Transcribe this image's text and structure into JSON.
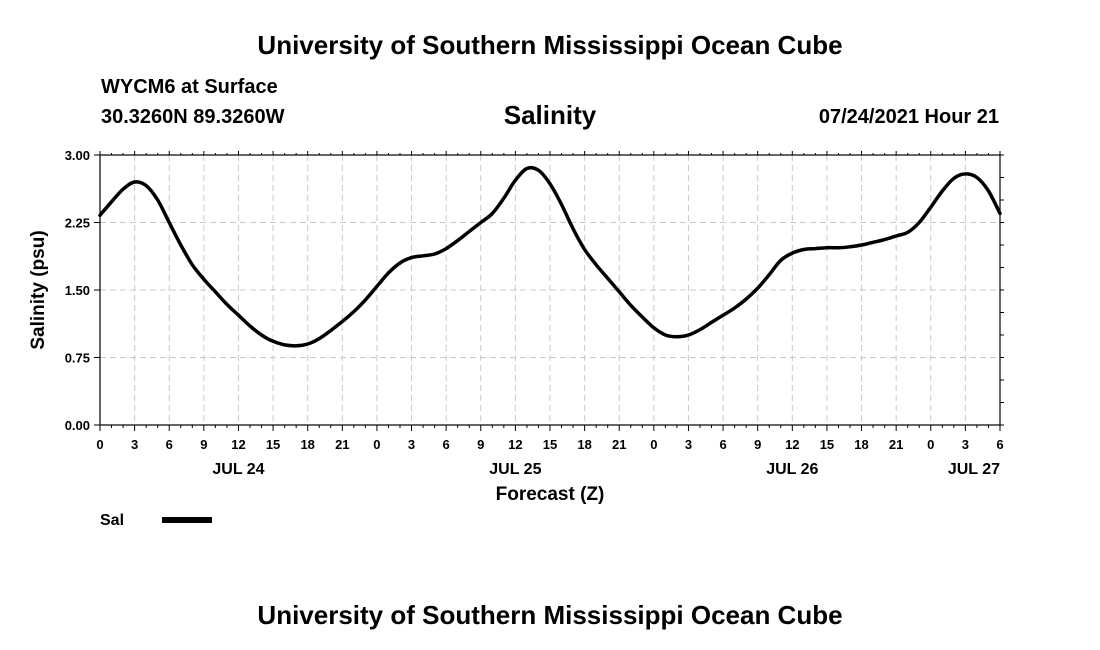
{
  "header": {
    "title": "University of Southern Mississippi Ocean Cube",
    "station": "WYCM6 at Surface",
    "coordinates": "30.3260N  89.3260W",
    "datetime": "07/24/2021 Hour 21"
  },
  "footer": {
    "title": "University of Southern Mississippi Ocean Cube"
  },
  "colors": {
    "line": "#000000",
    "grid": "#c8c8c8",
    "background": "#ffffff"
  },
  "chart_data": {
    "type": "line",
    "title": "Salinity",
    "xlabel": "Forecast (Z)",
    "ylabel": "Salinity (psu)",
    "ylim": [
      0,
      3
    ],
    "yticks": [
      "0.00",
      "0.75",
      "1.50",
      "2.25",
      "3.00"
    ],
    "xlim": [
      0,
      78
    ],
    "x_unit": "hours from 07/24 00Z",
    "xticks": [
      "0",
      "3",
      "6",
      "9",
      "12",
      "15",
      "18",
      "21",
      "0",
      "3",
      "6",
      "9",
      "12",
      "15",
      "18",
      "21",
      "0",
      "3",
      "6",
      "9",
      "12",
      "15",
      "18",
      "21",
      "0",
      "3",
      "6"
    ],
    "date_labels": [
      {
        "label": "JUL 24",
        "hour": 12
      },
      {
        "label": "JUL 25",
        "hour": 36
      },
      {
        "label": "JUL 26",
        "hour": 60
      },
      {
        "label": "JUL 27",
        "hour": 78
      }
    ],
    "grid": true,
    "legend": {
      "position": "bottom-left"
    },
    "series": [
      {
        "name": "Sal",
        "x": [
          0,
          1,
          2,
          3,
          4,
          5,
          6,
          7,
          8,
          9,
          10,
          11,
          12,
          13,
          14,
          15,
          16,
          17,
          18,
          19,
          20,
          21,
          22,
          23,
          24,
          25,
          26,
          27,
          28,
          29,
          30,
          31,
          32,
          33,
          34,
          35,
          36,
          37,
          38,
          39,
          40,
          41,
          42,
          43,
          44,
          45,
          46,
          47,
          48,
          49,
          50,
          51,
          52,
          53,
          54,
          55,
          56,
          57,
          58,
          59,
          60,
          61,
          62,
          63,
          64,
          65,
          66,
          67,
          68,
          69,
          70,
          71,
          72,
          73,
          74,
          75,
          76,
          77,
          78
        ],
        "y": [
          2.33,
          2.48,
          2.62,
          2.7,
          2.66,
          2.5,
          2.25,
          2.0,
          1.78,
          1.62,
          1.48,
          1.34,
          1.22,
          1.1,
          1.0,
          0.93,
          0.89,
          0.88,
          0.9,
          0.96,
          1.05,
          1.15,
          1.26,
          1.39,
          1.54,
          1.69,
          1.8,
          1.86,
          1.88,
          1.9,
          1.96,
          2.05,
          2.15,
          2.25,
          2.35,
          2.52,
          2.72,
          2.85,
          2.83,
          2.68,
          2.45,
          2.18,
          1.95,
          1.78,
          1.63,
          1.48,
          1.33,
          1.2,
          1.08,
          1.0,
          0.98,
          1.0,
          1.06,
          1.14,
          1.22,
          1.3,
          1.4,
          1.52,
          1.67,
          1.83,
          1.91,
          1.95,
          1.96,
          1.97,
          1.97,
          1.98,
          2.0,
          2.03,
          2.06,
          2.1,
          2.14,
          2.25,
          2.42,
          2.6,
          2.74,
          2.79,
          2.75,
          2.6,
          2.35
        ]
      }
    ]
  }
}
